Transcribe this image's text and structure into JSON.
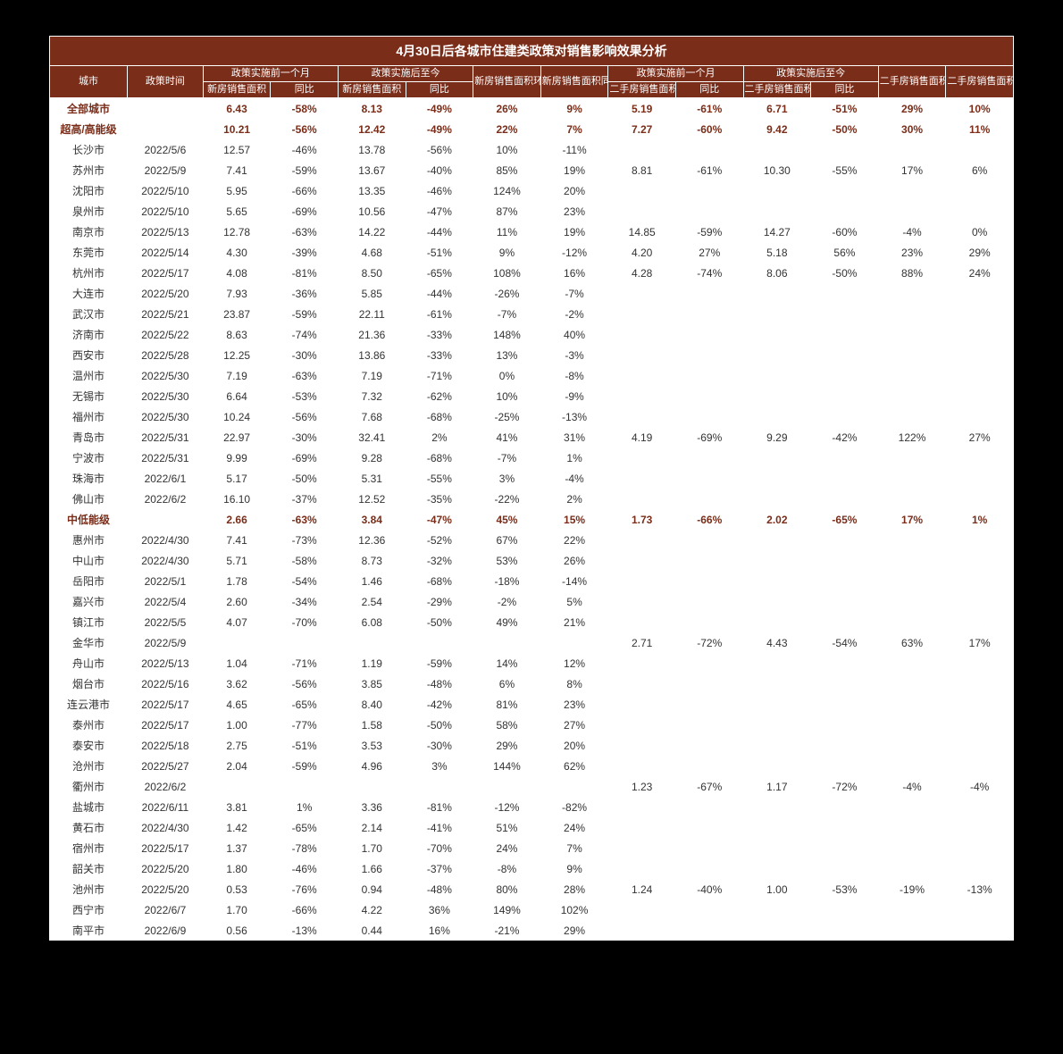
{
  "title": "4月30日后各城市住建类政策对销售影响效果分析",
  "colors": {
    "header_bg": "#7a2e1a",
    "header_fg": "#ffffff",
    "aggregate_fg": "#7a2e1a",
    "body_fg": "#333333",
    "page_bg": "#ffffff",
    "outer_bg": "#000000"
  },
  "header_groups": {
    "g1": "政策实施前一个月",
    "g2": "政策实施后至今",
    "g3": "政策实施前一个月",
    "g4": "政策实施后至今"
  },
  "columns": {
    "c0": "城市",
    "c1": "政策时间",
    "c2": "新房销售面积",
    "c3": "同比",
    "c4": "新房销售面积",
    "c5": "同比",
    "c6": "新房销售面积环比",
    "c7": "新房销售面积同比改善",
    "c8": "二手房销售面积",
    "c9": "同比",
    "c10": "二手房销售面积",
    "c11": "同比",
    "c12": "二手房销售面积环比",
    "c13": "二手房销售面积同比改善"
  },
  "rows": [
    {
      "agg": true,
      "c": [
        "全部城市",
        "",
        "6.43",
        "-58%",
        "8.13",
        "-49%",
        "26%",
        "9%",
        "5.19",
        "-61%",
        "6.71",
        "-51%",
        "29%",
        "10%"
      ]
    },
    {
      "agg": true,
      "c": [
        "超高/高能级",
        "",
        "10.21",
        "-56%",
        "12.42",
        "-49%",
        "22%",
        "7%",
        "7.27",
        "-60%",
        "9.42",
        "-50%",
        "30%",
        "11%"
      ]
    },
    {
      "c": [
        "长沙市",
        "2022/5/6",
        "12.57",
        "-46%",
        "13.78",
        "-56%",
        "10%",
        "-11%",
        "",
        "",
        "",
        "",
        "",
        ""
      ]
    },
    {
      "c": [
        "苏州市",
        "2022/5/9",
        "7.41",
        "-59%",
        "13.67",
        "-40%",
        "85%",
        "19%",
        "8.81",
        "-61%",
        "10.30",
        "-55%",
        "17%",
        "6%"
      ]
    },
    {
      "c": [
        "沈阳市",
        "2022/5/10",
        "5.95",
        "-66%",
        "13.35",
        "-46%",
        "124%",
        "20%",
        "",
        "",
        "",
        "",
        "",
        ""
      ]
    },
    {
      "c": [
        "泉州市",
        "2022/5/10",
        "5.65",
        "-69%",
        "10.56",
        "-47%",
        "87%",
        "23%",
        "",
        "",
        "",
        "",
        "",
        ""
      ]
    },
    {
      "c": [
        "南京市",
        "2022/5/13",
        "12.78",
        "-63%",
        "14.22",
        "-44%",
        "11%",
        "19%",
        "14.85",
        "-59%",
        "14.27",
        "-60%",
        "-4%",
        "0%"
      ]
    },
    {
      "c": [
        "东莞市",
        "2022/5/14",
        "4.30",
        "-39%",
        "4.68",
        "-51%",
        "9%",
        "-12%",
        "4.20",
        "27%",
        "5.18",
        "56%",
        "23%",
        "29%"
      ]
    },
    {
      "c": [
        "杭州市",
        "2022/5/17",
        "4.08",
        "-81%",
        "8.50",
        "-65%",
        "108%",
        "16%",
        "4.28",
        "-74%",
        "8.06",
        "-50%",
        "88%",
        "24%"
      ]
    },
    {
      "c": [
        "大连市",
        "2022/5/20",
        "7.93",
        "-36%",
        "5.85",
        "-44%",
        "-26%",
        "-7%",
        "",
        "",
        "",
        "",
        "",
        ""
      ]
    },
    {
      "c": [
        "武汉市",
        "2022/5/21",
        "23.87",
        "-59%",
        "22.11",
        "-61%",
        "-7%",
        "-2%",
        "",
        "",
        "",
        "",
        "",
        ""
      ]
    },
    {
      "c": [
        "济南市",
        "2022/5/22",
        "8.63",
        "-74%",
        "21.36",
        "-33%",
        "148%",
        "40%",
        "",
        "",
        "",
        "",
        "",
        ""
      ]
    },
    {
      "c": [
        "西安市",
        "2022/5/28",
        "12.25",
        "-30%",
        "13.86",
        "-33%",
        "13%",
        "-3%",
        "",
        "",
        "",
        "",
        "",
        ""
      ]
    },
    {
      "c": [
        "温州市",
        "2022/5/30",
        "7.19",
        "-63%",
        "7.19",
        "-71%",
        "0%",
        "-8%",
        "",
        "",
        "",
        "",
        "",
        ""
      ]
    },
    {
      "c": [
        "无锡市",
        "2022/5/30",
        "6.64",
        "-53%",
        "7.32",
        "-62%",
        "10%",
        "-9%",
        "",
        "",
        "",
        "",
        "",
        ""
      ]
    },
    {
      "c": [
        "福州市",
        "2022/5/30",
        "10.24",
        "-56%",
        "7.68",
        "-68%",
        "-25%",
        "-13%",
        "",
        "",
        "",
        "",
        "",
        ""
      ]
    },
    {
      "c": [
        "青岛市",
        "2022/5/31",
        "22.97",
        "-30%",
        "32.41",
        "2%",
        "41%",
        "31%",
        "4.19",
        "-69%",
        "9.29",
        "-42%",
        "122%",
        "27%"
      ]
    },
    {
      "c": [
        "宁波市",
        "2022/5/31",
        "9.99",
        "-69%",
        "9.28",
        "-68%",
        "-7%",
        "1%",
        "",
        "",
        "",
        "",
        "",
        ""
      ]
    },
    {
      "c": [
        "珠海市",
        "2022/6/1",
        "5.17",
        "-50%",
        "5.31",
        "-55%",
        "3%",
        "-4%",
        "",
        "",
        "",
        "",
        "",
        ""
      ]
    },
    {
      "c": [
        "佛山市",
        "2022/6/2",
        "16.10",
        "-37%",
        "12.52",
        "-35%",
        "-22%",
        "2%",
        "",
        "",
        "",
        "",
        "",
        ""
      ]
    },
    {
      "agg": true,
      "c": [
        "中低能级",
        "",
        "2.66",
        "-63%",
        "3.84",
        "-47%",
        "45%",
        "15%",
        "1.73",
        "-66%",
        "2.02",
        "-65%",
        "17%",
        "1%"
      ]
    },
    {
      "c": [
        "惠州市",
        "2022/4/30",
        "7.41",
        "-73%",
        "12.36",
        "-52%",
        "67%",
        "22%",
        "",
        "",
        "",
        "",
        "",
        ""
      ]
    },
    {
      "c": [
        "中山市",
        "2022/4/30",
        "5.71",
        "-58%",
        "8.73",
        "-32%",
        "53%",
        "26%",
        "",
        "",
        "",
        "",
        "",
        ""
      ]
    },
    {
      "c": [
        "岳阳市",
        "2022/5/1",
        "1.78",
        "-54%",
        "1.46",
        "-68%",
        "-18%",
        "-14%",
        "",
        "",
        "",
        "",
        "",
        ""
      ]
    },
    {
      "c": [
        "嘉兴市",
        "2022/5/4",
        "2.60",
        "-34%",
        "2.54",
        "-29%",
        "-2%",
        "5%",
        "",
        "",
        "",
        "",
        "",
        ""
      ]
    },
    {
      "c": [
        "镇江市",
        "2022/5/5",
        "4.07",
        "-70%",
        "6.08",
        "-50%",
        "49%",
        "21%",
        "",
        "",
        "",
        "",
        "",
        ""
      ]
    },
    {
      "c": [
        "金华市",
        "2022/5/9",
        "",
        "",
        "",
        "",
        "",
        "",
        "2.71",
        "-72%",
        "4.43",
        "-54%",
        "63%",
        "17%"
      ]
    },
    {
      "c": [
        "舟山市",
        "2022/5/13",
        "1.04",
        "-71%",
        "1.19",
        "-59%",
        "14%",
        "12%",
        "",
        "",
        "",
        "",
        "",
        ""
      ]
    },
    {
      "c": [
        "烟台市",
        "2022/5/16",
        "3.62",
        "-56%",
        "3.85",
        "-48%",
        "6%",
        "8%",
        "",
        "",
        "",
        "",
        "",
        ""
      ]
    },
    {
      "c": [
        "连云港市",
        "2022/5/17",
        "4.65",
        "-65%",
        "8.40",
        "-42%",
        "81%",
        "23%",
        "",
        "",
        "",
        "",
        "",
        ""
      ]
    },
    {
      "c": [
        "泰州市",
        "2022/5/17",
        "1.00",
        "-77%",
        "1.58",
        "-50%",
        "58%",
        "27%",
        "",
        "",
        "",
        "",
        "",
        ""
      ]
    },
    {
      "c": [
        "泰安市",
        "2022/5/18",
        "2.75",
        "-51%",
        "3.53",
        "-30%",
        "29%",
        "20%",
        "",
        "",
        "",
        "",
        "",
        ""
      ]
    },
    {
      "c": [
        "沧州市",
        "2022/5/27",
        "2.04",
        "-59%",
        "4.96",
        "3%",
        "144%",
        "62%",
        "",
        "",
        "",
        "",
        "",
        ""
      ]
    },
    {
      "c": [
        "衢州市",
        "2022/6/2",
        "",
        "",
        "",
        "",
        "",
        "",
        "1.23",
        "-67%",
        "1.17",
        "-72%",
        "-4%",
        "-4%"
      ]
    },
    {
      "c": [
        "盐城市",
        "2022/6/11",
        "3.81",
        "1%",
        "3.36",
        "-81%",
        "-12%",
        "-82%",
        "",
        "",
        "",
        "",
        "",
        ""
      ]
    },
    {
      "c": [
        "黄石市",
        "2022/4/30",
        "1.42",
        "-65%",
        "2.14",
        "-41%",
        "51%",
        "24%",
        "",
        "",
        "",
        "",
        "",
        ""
      ]
    },
    {
      "c": [
        "宿州市",
        "2022/5/17",
        "1.37",
        "-78%",
        "1.70",
        "-70%",
        "24%",
        "7%",
        "",
        "",
        "",
        "",
        "",
        ""
      ]
    },
    {
      "c": [
        "韶关市",
        "2022/5/20",
        "1.80",
        "-46%",
        "1.66",
        "-37%",
        "-8%",
        "9%",
        "",
        "",
        "",
        "",
        "",
        ""
      ]
    },
    {
      "c": [
        "池州市",
        "2022/5/20",
        "0.53",
        "-76%",
        "0.94",
        "-48%",
        "80%",
        "28%",
        "1.24",
        "-40%",
        "1.00",
        "-53%",
        "-19%",
        "-13%"
      ]
    },
    {
      "c": [
        "西宁市",
        "2022/6/7",
        "1.70",
        "-66%",
        "4.22",
        "36%",
        "149%",
        "102%",
        "",
        "",
        "",
        "",
        "",
        ""
      ]
    },
    {
      "c": [
        "南平市",
        "2022/6/9",
        "0.56",
        "-13%",
        "0.44",
        "16%",
        "-21%",
        "29%",
        "",
        "",
        "",
        "",
        "",
        ""
      ]
    }
  ]
}
